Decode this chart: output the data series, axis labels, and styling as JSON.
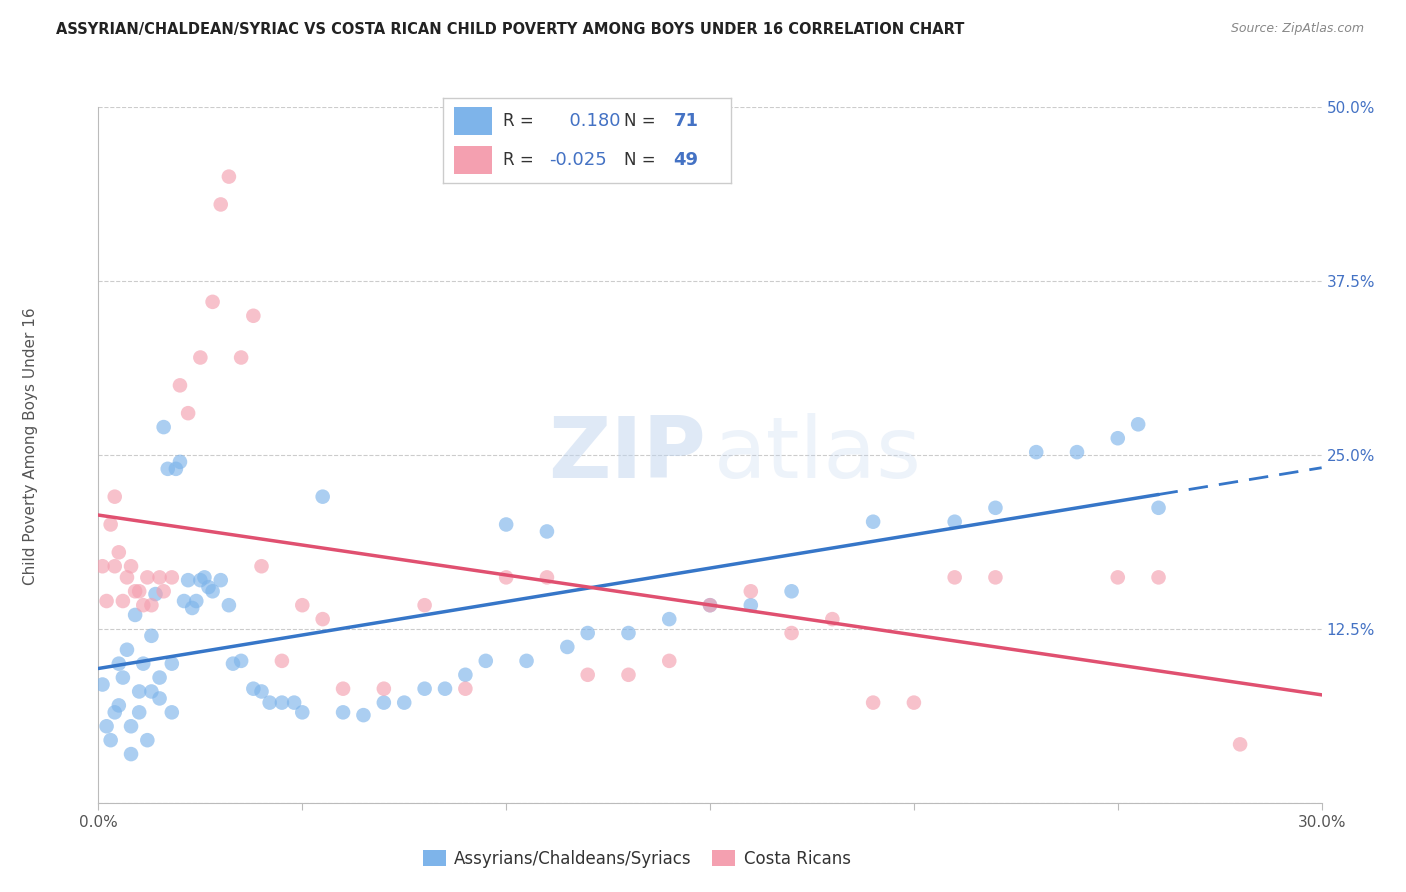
{
  "title": "ASSYRIAN/CHALDEAN/SYRIAC VS COSTA RICAN CHILD POVERTY AMONG BOYS UNDER 16 CORRELATION CHART",
  "source": "Source: ZipAtlas.com",
  "xlim": [
    0.0,
    0.3
  ],
  "ylim": [
    0.0,
    0.5
  ],
  "blue_R": 0.18,
  "blue_N": 71,
  "pink_R": -0.025,
  "pink_N": 49,
  "blue_color": "#7EB4EA",
  "pink_color": "#F4A0B0",
  "blue_line_color": "#3676C8",
  "pink_line_color": "#E05070",
  "legend_label_blue": "Assyrians/Chaldeans/Syriacs",
  "legend_label_pink": "Costa Ricans",
  "blue_scatter_x": [
    0.001,
    0.002,
    0.003,
    0.004,
    0.005,
    0.005,
    0.006,
    0.007,
    0.008,
    0.008,
    0.009,
    0.01,
    0.01,
    0.011,
    0.012,
    0.013,
    0.013,
    0.014,
    0.015,
    0.015,
    0.016,
    0.017,
    0.018,
    0.018,
    0.019,
    0.02,
    0.021,
    0.022,
    0.023,
    0.024,
    0.025,
    0.026,
    0.027,
    0.028,
    0.03,
    0.032,
    0.033,
    0.035,
    0.038,
    0.04,
    0.042,
    0.045,
    0.048,
    0.05,
    0.055,
    0.06,
    0.065,
    0.07,
    0.075,
    0.08,
    0.085,
    0.09,
    0.095,
    0.1,
    0.105,
    0.11,
    0.115,
    0.12,
    0.13,
    0.14,
    0.15,
    0.16,
    0.17,
    0.19,
    0.21,
    0.22,
    0.23,
    0.24,
    0.25,
    0.255,
    0.26
  ],
  "blue_scatter_y": [
    0.085,
    0.055,
    0.045,
    0.065,
    0.1,
    0.07,
    0.09,
    0.11,
    0.055,
    0.035,
    0.135,
    0.08,
    0.065,
    0.1,
    0.045,
    0.12,
    0.08,
    0.15,
    0.075,
    0.09,
    0.27,
    0.24,
    0.1,
    0.065,
    0.24,
    0.245,
    0.145,
    0.16,
    0.14,
    0.145,
    0.16,
    0.162,
    0.155,
    0.152,
    0.16,
    0.142,
    0.1,
    0.102,
    0.082,
    0.08,
    0.072,
    0.072,
    0.072,
    0.065,
    0.22,
    0.065,
    0.063,
    0.072,
    0.072,
    0.082,
    0.082,
    0.092,
    0.102,
    0.2,
    0.102,
    0.195,
    0.112,
    0.122,
    0.122,
    0.132,
    0.142,
    0.142,
    0.152,
    0.202,
    0.202,
    0.212,
    0.252,
    0.252,
    0.262,
    0.272,
    0.212
  ],
  "pink_scatter_x": [
    0.001,
    0.002,
    0.003,
    0.004,
    0.004,
    0.005,
    0.006,
    0.007,
    0.008,
    0.009,
    0.01,
    0.011,
    0.012,
    0.013,
    0.015,
    0.016,
    0.018,
    0.02,
    0.022,
    0.025,
    0.028,
    0.03,
    0.032,
    0.035,
    0.038,
    0.04,
    0.045,
    0.05,
    0.055,
    0.06,
    0.07,
    0.08,
    0.09,
    0.1,
    0.11,
    0.12,
    0.13,
    0.14,
    0.15,
    0.16,
    0.17,
    0.18,
    0.19,
    0.2,
    0.21,
    0.22,
    0.25,
    0.26,
    0.28
  ],
  "pink_scatter_y": [
    0.17,
    0.145,
    0.2,
    0.17,
    0.22,
    0.18,
    0.145,
    0.162,
    0.17,
    0.152,
    0.152,
    0.142,
    0.162,
    0.142,
    0.162,
    0.152,
    0.162,
    0.3,
    0.28,
    0.32,
    0.36,
    0.43,
    0.45,
    0.32,
    0.35,
    0.17,
    0.102,
    0.142,
    0.132,
    0.082,
    0.082,
    0.142,
    0.082,
    0.162,
    0.162,
    0.092,
    0.092,
    0.102,
    0.142,
    0.152,
    0.122,
    0.132,
    0.072,
    0.072,
    0.162,
    0.162,
    0.162,
    0.162,
    0.042
  ]
}
